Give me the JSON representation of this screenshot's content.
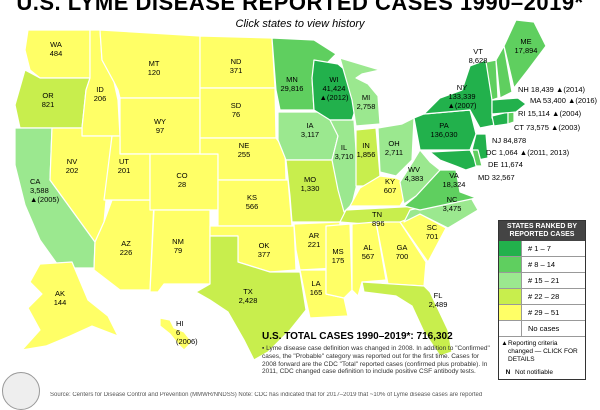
{
  "title": "U.S. LYME DISEASE REPORTED CASES 1990–2019*",
  "subtitle": "Click states to view history",
  "colors": {
    "rank_1_7": "#22b14c",
    "rank_8_14": "#5fcf5f",
    "rank_15_21": "#9be88f",
    "rank_22_28": "#c8ee4d",
    "rank_29_51": "#ffff66",
    "no_cases": "#ffffff"
  },
  "legend": {
    "header": "STATES RANKED BY REPORTED CASES",
    "rows": [
      {
        "label": "# 1 – 7",
        "color": "#22b14c"
      },
      {
        "label": "# 8 – 14",
        "color": "#5fcf5f"
      },
      {
        "label": "# 15 – 21",
        "color": "#9be88f"
      },
      {
        "label": "# 22 – 28",
        "color": "#c8ee4d"
      },
      {
        "label": "# 29 – 51",
        "color": "#ffff66"
      },
      {
        "label": "No cases",
        "color": "#ffffff"
      }
    ],
    "criteria_symbol": "▲",
    "criteria_text": "Reporting criteria changed — CLICK FOR DETAILS",
    "notnotifiable_symbol": "N",
    "notnotifiable_text": "Not notifiable"
  },
  "states": {
    "WA": {
      "abbr": "WA",
      "value": "484"
    },
    "OR": {
      "abbr": "OR",
      "value": "821"
    },
    "CA": {
      "abbr": "CA",
      "value": "3,588",
      "note": "▲(2005)"
    },
    "ID": {
      "abbr": "ID",
      "value": "206"
    },
    "NV": {
      "abbr": "NV",
      "value": "202"
    },
    "AZ": {
      "abbr": "AZ",
      "value": "226"
    },
    "MT": {
      "abbr": "MT",
      "value": "120"
    },
    "WY": {
      "abbr": "WY",
      "value": "97"
    },
    "UT": {
      "abbr": "UT",
      "value": "201"
    },
    "CO": {
      "abbr": "CO",
      "value": "28"
    },
    "NM": {
      "abbr": "NM",
      "value": "79"
    },
    "ND": {
      "abbr": "ND",
      "value": "371"
    },
    "SD": {
      "abbr": "SD",
      "value": "76"
    },
    "NE": {
      "abbr": "NE",
      "value": "255"
    },
    "KS": {
      "abbr": "KS",
      "value": "566"
    },
    "OK": {
      "abbr": "OK",
      "value": "377"
    },
    "TX": {
      "abbr": "TX",
      "value": "2,428"
    },
    "MN": {
      "abbr": "MN",
      "value": "29,816"
    },
    "IA": {
      "abbr": "IA",
      "value": "3,117"
    },
    "MO": {
      "abbr": "MO",
      "value": "1,330"
    },
    "AR": {
      "abbr": "AR",
      "value": "221"
    },
    "LA": {
      "abbr": "LA",
      "value": "165"
    },
    "WI": {
      "abbr": "WI",
      "value": "41,424",
      "note": "▲(2012)"
    },
    "IL": {
      "abbr": "IL",
      "value": "3,710"
    },
    "MI": {
      "abbr": "MI",
      "value": "2,758"
    },
    "IN": {
      "abbr": "IN",
      "value": "1,856"
    },
    "OH": {
      "abbr": "OH",
      "value": "2,711"
    },
    "KY": {
      "abbr": "KY",
      "value": "607"
    },
    "TN": {
      "abbr": "TN",
      "value": "896"
    },
    "MS": {
      "abbr": "MS",
      "value": "175"
    },
    "AL": {
      "abbr": "AL",
      "value": "567"
    },
    "GA": {
      "abbr": "GA",
      "value": "700"
    },
    "FL": {
      "abbr": "FL",
      "value": "2,489"
    },
    "SC": {
      "abbr": "SC",
      "value": "701"
    },
    "NC": {
      "abbr": "NC",
      "value": "3,475"
    },
    "VA": {
      "abbr": "VA",
      "value": "18,324"
    },
    "WV": {
      "abbr": "WV",
      "value": "4,383"
    },
    "PA": {
      "abbr": "PA",
      "value": "136,030"
    },
    "NY": {
      "abbr": "NY",
      "value": "133,339",
      "note": "▲(2007)"
    },
    "VT": {
      "abbr": "VT",
      "value": "8,628"
    },
    "ME": {
      "abbr": "ME",
      "value": "17,894"
    },
    "AK": {
      "abbr": "AK",
      "value": "144"
    },
    "HI": {
      "abbr": "HI",
      "value": "6",
      "note": "(2006)"
    }
  },
  "callouts": [
    {
      "text": "NH 18,439 ▲(2014)"
    },
    {
      "text": "MA 53,400 ▲(2016)"
    },
    {
      "text": "RI 15,114 ▲(2004)"
    },
    {
      "text": "CT 73,575 ▲(2003)"
    },
    {
      "text": "NJ 84,878"
    },
    {
      "text": "DC 1,064 ▲(2011, 2013)"
    },
    {
      "text": "DE 11,674"
    },
    {
      "text": "MD 32,567"
    }
  ],
  "total": "U.S. TOTAL CASES 1990–2019*: 716,302",
  "footnote": "▪ Lyme disease case definition was changed in 2008. In addition to \"Confirmed\" cases, the \"Probable\" category was reported out for the first time. Cases for 2008 forward are the CDC \"Total\" reported cases (confirmed plus probable). In 2011, CDC changed case definition to include positive CSF antibody tests.",
  "source": "Source: Centers for Disease Control and Prevention (MMWR/NNDSS)     Note: CDC has indicated that for 2017–2019 that ~10% of Lyme disease cases are reported"
}
